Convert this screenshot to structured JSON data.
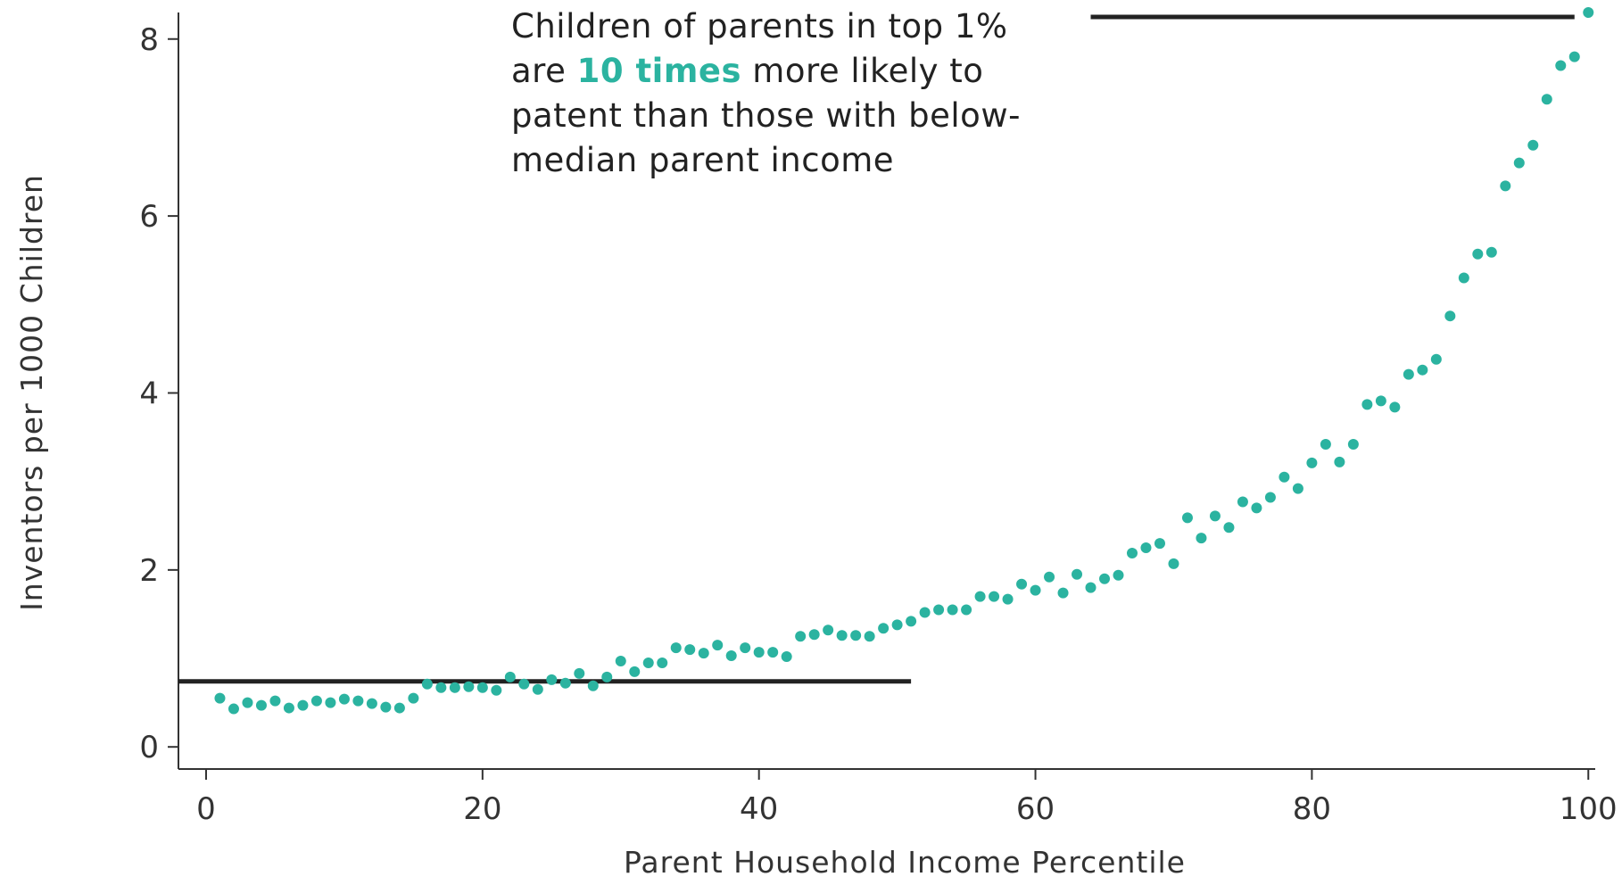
{
  "chart_data": {
    "type": "scatter",
    "title": "",
    "xlabel": "Parent Household Income Percentile",
    "ylabel": "Inventors per 1000 Children",
    "xlim": [
      -2,
      100.5
    ],
    "ylim": [
      -0.25,
      8.3
    ],
    "xticks": [
      0,
      20,
      40,
      60,
      80,
      100
    ],
    "yticks": [
      0,
      2,
      4,
      6,
      8
    ],
    "xtick_labels": [
      "0",
      "20",
      "40",
      "60",
      "80",
      "100"
    ],
    "ytick_labels": [
      "0",
      "2",
      "4",
      "6",
      "8"
    ],
    "point_color": "#2bb3a0",
    "line_color": "#222222",
    "grid": false,
    "legend": "none",
    "series": [
      {
        "x": [
          1,
          2,
          3,
          4,
          5,
          6,
          7,
          8,
          9,
          10,
          11,
          12,
          13,
          14,
          15,
          16,
          17,
          18,
          19,
          20,
          21,
          22,
          23,
          24,
          25,
          26,
          27,
          28,
          29,
          30,
          31,
          32,
          33,
          34,
          35,
          36,
          37,
          38,
          39,
          40,
          41,
          42,
          43,
          44,
          45,
          46,
          47,
          48,
          49,
          50,
          51,
          52,
          53,
          54,
          55,
          56,
          57,
          58,
          59,
          60,
          61,
          62,
          63,
          64,
          65,
          66,
          67,
          68,
          69,
          70,
          71,
          72,
          73,
          74,
          75,
          76,
          77,
          78,
          79,
          80,
          81,
          82,
          83,
          84,
          85,
          86,
          87,
          88,
          89,
          90,
          91,
          92,
          93,
          94,
          95,
          96,
          97,
          98,
          99,
          100
        ],
        "y": [
          0.55,
          0.43,
          0.5,
          0.47,
          0.52,
          0.44,
          0.47,
          0.52,
          0.5,
          0.54,
          0.52,
          0.49,
          0.45,
          0.44,
          0.55,
          0.71,
          0.67,
          0.67,
          0.68,
          0.67,
          0.64,
          0.79,
          0.71,
          0.65,
          0.76,
          0.72,
          0.83,
          0.69,
          0.79,
          0.97,
          0.85,
          0.95,
          0.95,
          1.12,
          1.1,
          1.06,
          1.15,
          1.03,
          1.12,
          1.07,
          1.07,
          1.02,
          1.25,
          1.27,
          1.32,
          1.26,
          1.26,
          1.25,
          1.34,
          1.38,
          1.42,
          1.52,
          1.55,
          1.55,
          1.55,
          1.7,
          1.7,
          1.67,
          1.84,
          1.77,
          1.92,
          1.74,
          1.95,
          1.8,
          1.9,
          1.94,
          2.19,
          2.25,
          2.3,
          2.07,
          2.59,
          2.36,
          2.61,
          2.48,
          2.77,
          2.7,
          2.82,
          3.05,
          2.92,
          3.21,
          3.42,
          3.22,
          3.42,
          3.87,
          3.91,
          3.84,
          4.21,
          4.26,
          4.38,
          4.87,
          5.3,
          5.57,
          5.59,
          6.34,
          6.6,
          6.8,
          7.32,
          7.7,
          7.8,
          8.3
        ]
      }
    ],
    "reference_lines": [
      {
        "y": 0.74,
        "x_from": -2,
        "x_to": 51
      },
      {
        "y": 8.25,
        "x_from": 64,
        "x_to": 99
      }
    ],
    "annotation": {
      "line1": "Children of parents in top 1%",
      "line2_pre": "are ",
      "line2_highlight": "10 times",
      "line2_post": " more likely to",
      "line3": "patent than those with below-",
      "line4": "median parent income"
    }
  }
}
